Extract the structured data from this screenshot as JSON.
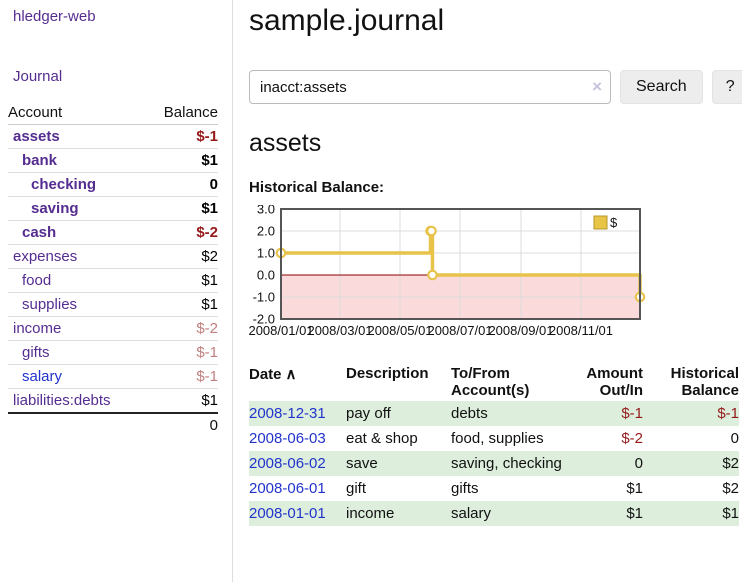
{
  "colors": {
    "link_purple": "#552d90",
    "link_blue": "#2233cc",
    "negative_strong": "#941a1a",
    "negative_soft": "#c17f7f",
    "row_shade_green": "#ddeedd",
    "chart_line_gold": "#e7c34a",
    "chart_negative_fill": "#fadada",
    "chart_zero_line": "#8b0000",
    "chart_border": "#555555"
  },
  "sidebar": {
    "app_title": "hledger-web",
    "journal_label": "Journal",
    "accounts_table": {
      "headers": {
        "account": "Account",
        "balance": "Balance"
      },
      "rows": [
        {
          "name": "assets",
          "depth": 1,
          "bold": true,
          "link_color": "purple",
          "balance": "$-1",
          "neg": true
        },
        {
          "name": "bank",
          "depth": 2,
          "bold": true,
          "link_color": "purple",
          "balance": "$1",
          "neg": false
        },
        {
          "name": "checking",
          "depth": 3,
          "bold": true,
          "link_color": "purple",
          "balance": "0",
          "neg": false
        },
        {
          "name": "saving",
          "depth": 3,
          "bold": true,
          "link_color": "purple",
          "balance": "$1",
          "neg": false
        },
        {
          "name": "cash",
          "depth": 2,
          "bold": true,
          "link_color": "purple",
          "balance": "$-2",
          "neg": true
        },
        {
          "name": "expenses",
          "depth": 1,
          "bold": false,
          "link_color": "purple",
          "balance": "$2",
          "neg": false
        },
        {
          "name": "food",
          "depth": 2,
          "bold": false,
          "link_color": "purple",
          "balance": "$1",
          "neg": false
        },
        {
          "name": "supplies",
          "depth": 2,
          "bold": false,
          "link_color": "purple",
          "balance": "$1",
          "neg": false
        },
        {
          "name": "income",
          "depth": 1,
          "bold": false,
          "link_color": "purple",
          "balance": "$-2",
          "neg": true
        },
        {
          "name": "gifts",
          "depth": 2,
          "bold": false,
          "link_color": "purple",
          "balance": "$-1",
          "neg": true
        },
        {
          "name": "salary",
          "depth": 2,
          "bold": false,
          "link_color": "blue",
          "balance": "$-1",
          "neg": true
        },
        {
          "name": "liabilities:debts",
          "depth": 1,
          "bold": false,
          "link_color": "purple",
          "balance": "$1",
          "neg": false
        }
      ],
      "total": "0"
    }
  },
  "main": {
    "title": "sample.journal",
    "search": {
      "value": "inacct:assets",
      "clear_icon": "×",
      "search_button": "Search",
      "help_button": "?"
    },
    "account_heading": "assets",
    "chart_label": "Historical Balance:"
  },
  "chart_data": {
    "type": "line",
    "title": "Historical Balance:",
    "step": true,
    "legend": "$",
    "legend_position": "top-right",
    "grid": true,
    "ylim": [
      -2,
      3
    ],
    "y_ticks": [
      3.0,
      2.0,
      1.0,
      0.0,
      -1.0,
      -2.0
    ],
    "x_ticks": [
      "2008/01/01",
      "2008/03/01",
      "2008/05/01",
      "2008/07/01",
      "2008/09/01",
      "2008/11/01"
    ],
    "x_start": "2008/01/01",
    "x_end": "2008/12/31",
    "series": [
      {
        "name": "$",
        "points": [
          [
            "2008/01/01",
            1
          ],
          [
            "2008/06/01",
            2
          ],
          [
            "2008/06/02",
            2
          ],
          [
            "2008/06/03",
            0
          ],
          [
            "2008/12/31",
            -1
          ]
        ]
      }
    ]
  },
  "register": {
    "sort_column": "Date",
    "sort_icon": "∧",
    "columns": [
      "Date",
      "Description",
      "To/From Account(s)",
      "Amount Out/In",
      "Historical Balance"
    ],
    "rows": [
      {
        "date": "2008-12-31",
        "description": "pay off",
        "accounts": "debts",
        "amount": "$-1",
        "amount_neg": true,
        "balance": "$-1",
        "balance_neg": true
      },
      {
        "date": "2008-06-03",
        "description": "eat & shop",
        "accounts": "food, supplies",
        "amount": "$-2",
        "amount_neg": true,
        "balance": "0",
        "balance_neg": false
      },
      {
        "date": "2008-06-02",
        "description": "save",
        "accounts": "saving, checking",
        "amount": "0",
        "amount_neg": false,
        "balance": "$2",
        "balance_neg": false
      },
      {
        "date": "2008-06-01",
        "description": "gift",
        "accounts": "gifts",
        "amount": "$1",
        "amount_neg": false,
        "balance": "$2",
        "balance_neg": false
      },
      {
        "date": "2008-01-01",
        "description": "income",
        "accounts": "salary",
        "amount": "$1",
        "amount_neg": false,
        "balance": "$1",
        "balance_neg": false
      }
    ]
  }
}
